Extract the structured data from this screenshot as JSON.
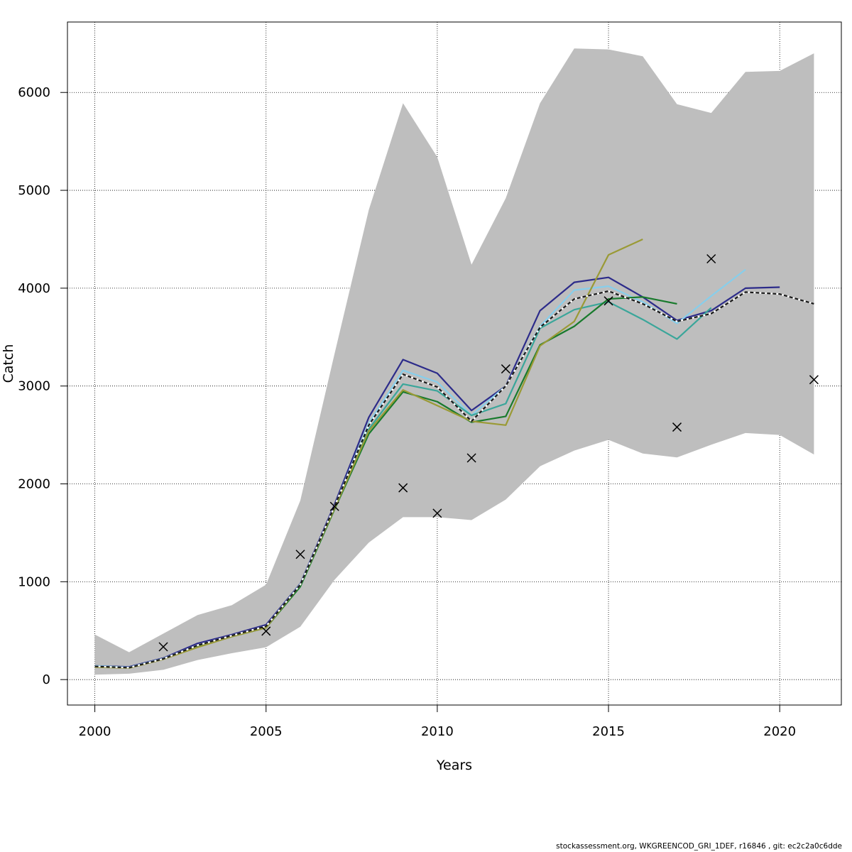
{
  "chart_data": {
    "type": "line",
    "xlabel": "Years",
    "ylabel": "Catch",
    "xlim": [
      1999.2,
      2021.8
    ],
    "ylim": [
      -260,
      6720
    ],
    "x_ticks": [
      2000,
      2005,
      2010,
      2015,
      2020
    ],
    "y_ticks": [
      0,
      1000,
      2000,
      3000,
      4000,
      5000,
      6000
    ],
    "grid": true,
    "band": {
      "color": "#bebebe",
      "x": [
        2000,
        2001,
        2002,
        2003,
        2004,
        2005,
        2006,
        2007,
        2008,
        2009,
        2010,
        2011,
        2012,
        2013,
        2014,
        2015,
        2016,
        2017,
        2018,
        2019,
        2020,
        2021
      ],
      "upper": [
        460,
        280,
        470,
        660,
        760,
        970,
        1830,
        3330,
        4800,
        5890,
        5340,
        4240,
        4920,
        5890,
        6450,
        6440,
        6370,
        5880,
        5790,
        6210,
        6220,
        6400
      ],
      "lower": [
        50,
        60,
        100,
        200,
        270,
        330,
        540,
        1020,
        1400,
        1660,
        1660,
        1630,
        1840,
        2180,
        2340,
        2450,
        2310,
        2270,
        2400,
        2520,
        2500,
        2300
      ]
    },
    "series": [
      {
        "color": "#2c2b8a",
        "dashed": false,
        "x": [
          2000,
          2001,
          2002,
          2003,
          2004,
          2005,
          2006,
          2007,
          2008,
          2009,
          2010,
          2011,
          2012,
          2013,
          2014,
          2015,
          2016,
          2017,
          2018,
          2019,
          2020
        ],
        "values": [
          140,
          130,
          220,
          370,
          460,
          560,
          980,
          1790,
          2680,
          3270,
          3130,
          2750,
          3000,
          3770,
          4060,
          4110,
          3910,
          3670,
          3770,
          4000,
          4010
        ]
      },
      {
        "color": "#87ceeb",
        "dashed": false,
        "x": [
          2000,
          2001,
          2002,
          2003,
          2004,
          2005,
          2006,
          2007,
          2008,
          2009,
          2010,
          2011,
          2012,
          2013,
          2014,
          2015,
          2016,
          2017,
          2018,
          2019
        ],
        "values": [
          140,
          125,
          215,
          350,
          450,
          545,
          975,
          1770,
          2620,
          3160,
          3040,
          2700,
          3000,
          3610,
          3980,
          4020,
          3860,
          3640,
          3920,
          4190
        ]
      },
      {
        "color": "#3aa69a",
        "dashed": false,
        "x": [
          2000,
          2001,
          2002,
          2003,
          2004,
          2005,
          2006,
          2007,
          2008,
          2009,
          2010,
          2011,
          2012,
          2013,
          2014,
          2015,
          2016,
          2017,
          2018
        ],
        "values": [
          135,
          122,
          212,
          345,
          445,
          540,
          965,
          1760,
          2560,
          3020,
          2950,
          2700,
          2820,
          3590,
          3780,
          3860,
          3680,
          3480,
          3800
        ]
      },
      {
        "color": "#187a2c",
        "dashed": false,
        "x": [
          2000,
          2001,
          2002,
          2003,
          2004,
          2005,
          2006,
          2007,
          2008,
          2009,
          2010,
          2011,
          2012,
          2013,
          2014,
          2015,
          2016,
          2017
        ],
        "values": [
          130,
          120,
          210,
          335,
          440,
          530,
          950,
          1740,
          2510,
          2940,
          2840,
          2630,
          2690,
          3420,
          3610,
          3890,
          3910,
          3840
        ]
      },
      {
        "color": "#9a9a35",
        "dashed": false,
        "x": [
          2000,
          2001,
          2002,
          2003,
          2004,
          2005,
          2006,
          2007,
          2008,
          2009,
          2010,
          2011,
          2012,
          2013,
          2014,
          2015,
          2016
        ],
        "values": [
          128,
          118,
          208,
          330,
          440,
          530,
          970,
          1750,
          2540,
          2960,
          2800,
          2640,
          2600,
          3410,
          3660,
          4340,
          4500
        ]
      },
      {
        "color": "#1a1a1a",
        "dashed": true,
        "x": [
          2000,
          2001,
          2002,
          2003,
          2004,
          2005,
          2006,
          2007,
          2008,
          2009,
          2010,
          2011,
          2012,
          2013,
          2014,
          2015,
          2016,
          2017,
          2018,
          2019,
          2020,
          2021
        ],
        "values": [
          135,
          122,
          212,
          350,
          450,
          545,
          970,
          1770,
          2600,
          3120,
          2990,
          2640,
          3000,
          3600,
          3890,
          3970,
          3840,
          3660,
          3740,
          3960,
          3940,
          3840
        ]
      }
    ],
    "observations": {
      "marker": "x",
      "x": [
        2002,
        2005,
        2006,
        2007,
        2009,
        2010,
        2011,
        2012,
        2015,
        2017,
        2018,
        2021
      ],
      "values": [
        335,
        495,
        1280,
        1770,
        1960,
        1700,
        2265,
        3175,
        3870,
        2580,
        4300,
        3065
      ]
    }
  },
  "footer": "stockassessment.org, WKGREENCOD_GRI_1DEF, r16846 , git: ec2c2a0c6dde"
}
